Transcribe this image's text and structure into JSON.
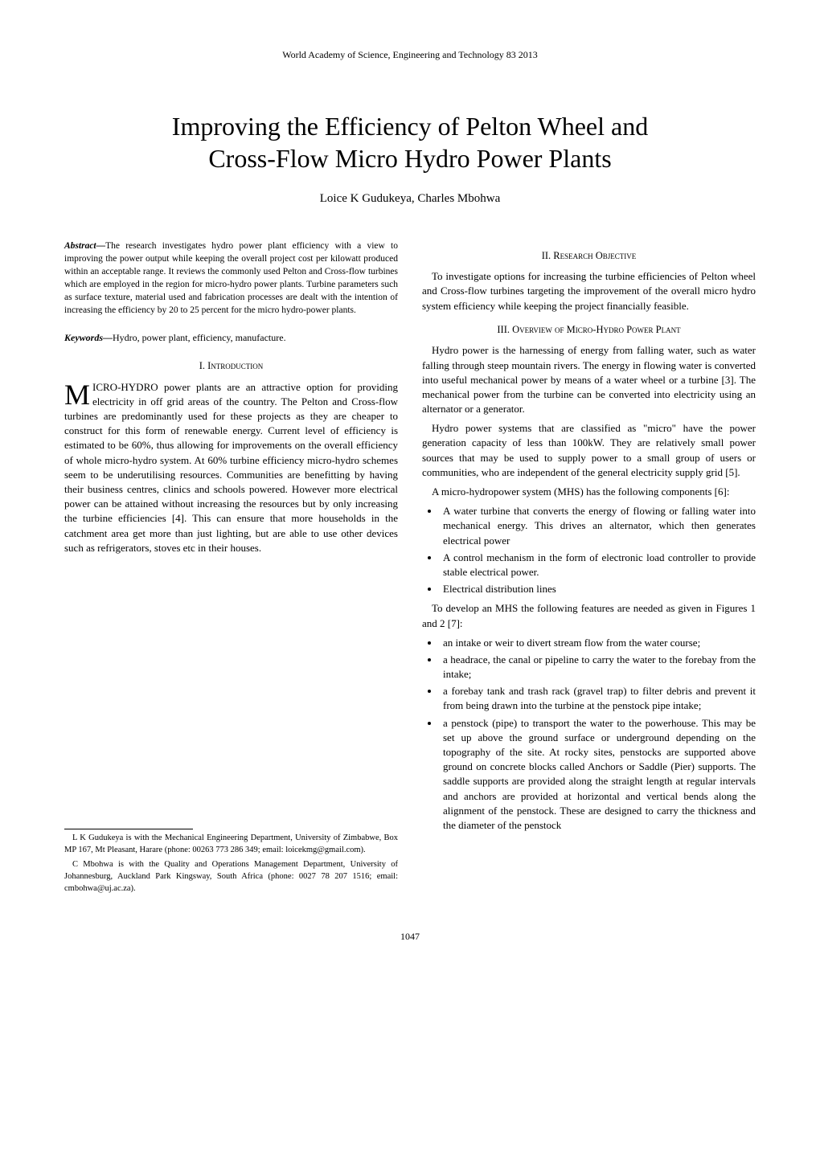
{
  "header": "World Academy of Science, Engineering and Technology 83 2013",
  "title_line1": "Improving the Efficiency of Pelton Wheel and",
  "title_line2": "Cross-Flow Micro Hydro Power Plants",
  "authors": "Loice K Gudukeya, Charles Mbohwa",
  "abstract_label": "Abstract—",
  "abstract_text": "The research investigates hydro power plant efficiency with a view to improving the power output while keeping the overall project cost per kilowatt produced within an acceptable range. It reviews the commonly used Pelton and Cross-flow turbines which are employed in the region for micro-hydro power plants. Turbine parameters such as surface texture, material used and fabrication processes are dealt with the intention of increasing the efficiency by 20 to 25 percent for the micro hydro-power plants.",
  "keywords_label": "Keywords—",
  "keywords_text": "Hydro, power plant, efficiency, manufacture.",
  "section_intro": "I.  Introduction",
  "intro_first_letter": "M",
  "intro_body": "ICRO-HYDRO power plants are an attractive option for providing electricity in off grid areas of the country. The Pelton and Cross-flow turbines are predominantly used for these projects as they are cheaper to construct for this form of renewable energy. Current level of efficiency is estimated to be 60%, thus allowing for improvements on the overall efficiency of whole micro-hydro system. At 60% turbine efficiency micro-hydro schemes seem to be underutilising resources. Communities are benefitting by having their business centres, clinics and schools powered. However more electrical power can be attained without increasing the resources but by only increasing the turbine efficiencies [4]. This can ensure that more households in the catchment area get more than just lighting, but are able to use other devices such as refrigerators, stoves etc in their houses.",
  "section_obj": "II. Research Objective",
  "obj_body": "To investigate options for increasing the turbine efficiencies of Pelton wheel and Cross-flow turbines targeting the improvement of the overall micro hydro system efficiency while keeping the project financially feasible.",
  "section_overview": "III.   Overview of Micro-Hydro Power Plant",
  "overview_p1": "Hydro power is the harnessing of energy from falling water, such as water falling through steep mountain rivers. The energy in flowing water is converted into useful mechanical power by means of a water wheel or a turbine [3]. The mechanical power from the turbine can be converted into electricity using an alternator or a generator.",
  "overview_p2": "Hydro power systems that are classified as \"micro\" have the power generation capacity of less than 100kW. They are relatively small power sources that may be used to supply power to a small group of users or communities, who are independent of the general electricity supply grid [5].",
  "overview_p3": "A micro-hydropower system (MHS) has the following components [6]:",
  "components": [
    "A water turbine that converts the energy of flowing or falling water into mechanical energy. This drives an alternator, which then generates electrical power",
    "A control mechanism in the form of electronic load controller to provide stable electrical        power.",
    "Electrical distribution lines"
  ],
  "overview_p4": "To develop an MHS the following features are needed as given in Figures 1 and 2 [7]:",
  "features": [
    "an intake or weir to divert stream flow from the water course;",
    "a headrace, the canal or pipeline to carry the water to the forebay from the intake;",
    "a forebay tank and trash rack (gravel trap) to filter debris and prevent it from  being drawn into the turbine at the penstock pipe intake;",
    "a penstock (pipe) to transport the water to the powerhouse. This may be set up above the ground surface or underground depending on the topography of the site. At rocky sites, penstocks are supported above ground on concrete blocks called Anchors or Saddle (Pier) supports. The saddle supports are provided along the straight length at regular intervals and anchors are provided at horizontal and vertical bends along the alignment of the penstock. These are designed to carry the   thickness     and     the diameter of the penstock"
  ],
  "footnote1": "L K Gudukeya is with the Mechanical Engineering Department, University of Zimbabwe, Box MP 167, Mt Pleasant, Harare (phone: 00263 773 286 349; email: loicekmg@gmail.com).",
  "footnote2": "C Mbohwa is with the Quality and Operations Management Department, University of Johannesburg, Auckland Park Kingsway, South Africa (phone: 0027 78 207 1516; email: cmbohwa@uj.ac.za).",
  "page_number": "1047"
}
